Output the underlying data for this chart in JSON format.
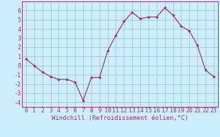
{
  "x": [
    0,
    1,
    2,
    3,
    4,
    5,
    6,
    7,
    8,
    9,
    10,
    11,
    12,
    13,
    14,
    15,
    16,
    17,
    18,
    19,
    20,
    21,
    22,
    23
  ],
  "y": [
    0.7,
    0.0,
    -0.7,
    -1.2,
    -1.5,
    -1.5,
    -1.8,
    -3.8,
    -1.3,
    -1.3,
    1.6,
    3.3,
    4.8,
    5.8,
    5.1,
    5.3,
    5.3,
    6.3,
    5.5,
    4.3,
    3.8,
    2.2,
    -0.5,
    -1.2
  ],
  "xlabel": "Windchill (Refroidissement éolien,°C)",
  "xlim": [
    -0.5,
    23.5
  ],
  "ylim": [
    -4.5,
    7.0
  ],
  "yticks": [
    -4,
    -3,
    -2,
    -1,
    0,
    1,
    2,
    3,
    4,
    5,
    6
  ],
  "xticks": [
    0,
    1,
    2,
    3,
    4,
    5,
    6,
    7,
    8,
    9,
    10,
    11,
    12,
    13,
    14,
    15,
    16,
    17,
    18,
    19,
    20,
    21,
    22,
    23
  ],
  "line_color": "#993399",
  "marker": "D",
  "marker_size": 1.8,
  "bg_color": "#cceeff",
  "grid_color": "#99bbcc",
  "spine_color": "#993399",
  "tick_label_color": "#993399",
  "xlabel_color": "#993399",
  "xlabel_fontsize": 6.5,
  "tick_fontsize": 6.0
}
